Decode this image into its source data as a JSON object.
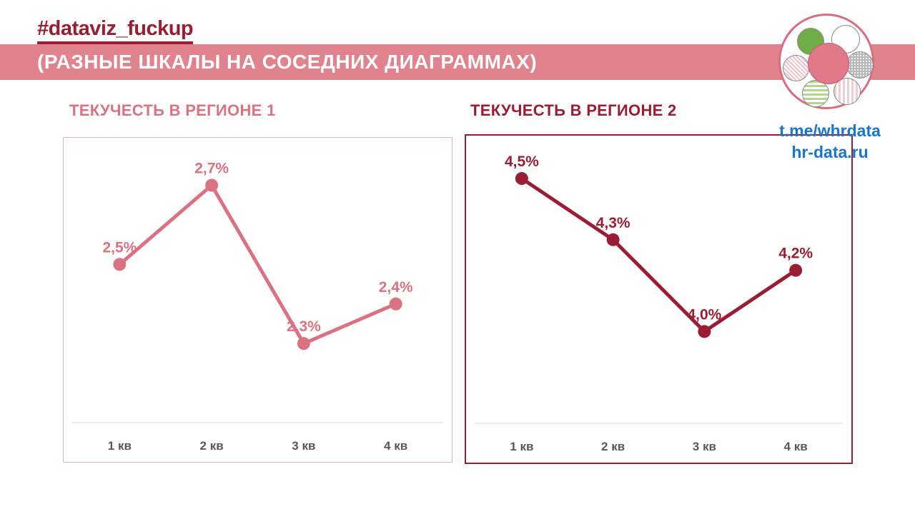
{
  "header": {
    "hashtag": "#dataviz_fuckup",
    "banner_title": "(РАЗНЫЕ ШКАЛЫ НА СОСЕДНИХ ДИАГРАММАХ)"
  },
  "links": {
    "telegram": "t.me/whrdata",
    "site": "hr-data.ru"
  },
  "colors": {
    "maroon": "#9b1d33",
    "banner_pink": "#e1828f",
    "chart1_pink": "#db7282",
    "chart1_border": "#e6afb8",
    "link_blue": "#1777cf",
    "axis_label_gray": "#58585a",
    "axis_line_gray": "#d9d9d9",
    "logo_green": "#71ad47",
    "logo_center_pink": "#e2798b"
  },
  "chart_data": [
    {
      "type": "line",
      "title": "ТЕКУЧЕСТЬ В РЕГИОНЕ 1",
      "categories": [
        "1 кв",
        "2 кв",
        "3 кв",
        "4 кв"
      ],
      "values": [
        2.5,
        2.7,
        2.3,
        2.4
      ],
      "point_labels": [
        "2,5%",
        "2,7%",
        "2,3%",
        "2,4%"
      ],
      "ylim": [
        2.1,
        2.82
      ],
      "line_color": "#db7282",
      "grid": false,
      "legend": "none",
      "xlabel": "",
      "ylabel": ""
    },
    {
      "type": "line",
      "title": "ТЕКУЧЕСТЬ В РЕГИОНЕ 2",
      "categories": [
        "1 кв",
        "2 кв",
        "3 кв",
        "4 кв"
      ],
      "values": [
        4.5,
        4.3,
        4.0,
        4.2
      ],
      "point_labels": [
        "4,5%",
        "4,3%",
        "4,0%",
        "4,2%"
      ],
      "ylim": [
        3.7,
        4.64
      ],
      "line_color": "#9b1d33",
      "grid": false,
      "legend": "none",
      "xlabel": "",
      "ylabel": ""
    }
  ]
}
